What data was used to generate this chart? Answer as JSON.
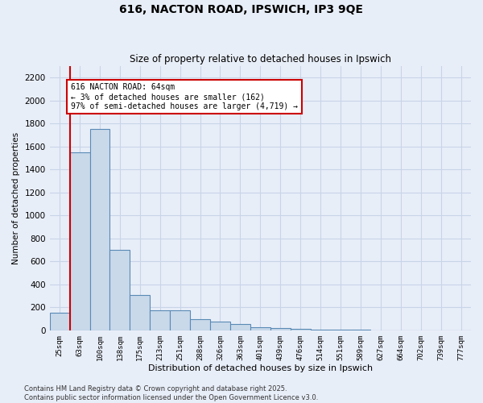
{
  "title": "616, NACTON ROAD, IPSWICH, IP3 9QE",
  "subtitle": "Size of property relative to detached houses in Ipswich",
  "xlabel": "Distribution of detached houses by size in Ipswich",
  "ylabel": "Number of detached properties",
  "categories": [
    "25sqm",
    "63sqm",
    "100sqm",
    "138sqm",
    "175sqm",
    "213sqm",
    "251sqm",
    "288sqm",
    "326sqm",
    "363sqm",
    "401sqm",
    "439sqm",
    "476sqm",
    "514sqm",
    "551sqm",
    "589sqm",
    "627sqm",
    "664sqm",
    "702sqm",
    "739sqm",
    "777sqm"
  ],
  "values": [
    150,
    1550,
    1750,
    700,
    310,
    175,
    175,
    100,
    75,
    55,
    30,
    20,
    15,
    8,
    5,
    3,
    2,
    2,
    1,
    1,
    1
  ],
  "bar_color": "#c9d9ea",
  "bar_edge_color": "#5a8ab5",
  "highlight_line_color": "#cc0000",
  "annotation_text": "616 NACTON ROAD: 64sqm\n← 3% of detached houses are smaller (162)\n97% of semi-detached houses are larger (4,719) →",
  "annotation_box_color": "#ffffff",
  "annotation_box_edge_color": "#cc0000",
  "ylim": [
    0,
    2300
  ],
  "yticks": [
    0,
    200,
    400,
    600,
    800,
    1000,
    1200,
    1400,
    1600,
    1800,
    2000,
    2200
  ],
  "grid_color": "#c8d4e8",
  "background_color": "#e8eef8",
  "footer_line1": "Contains HM Land Registry data © Crown copyright and database right 2025.",
  "footer_line2": "Contains public sector information licensed under the Open Government Licence v3.0."
}
